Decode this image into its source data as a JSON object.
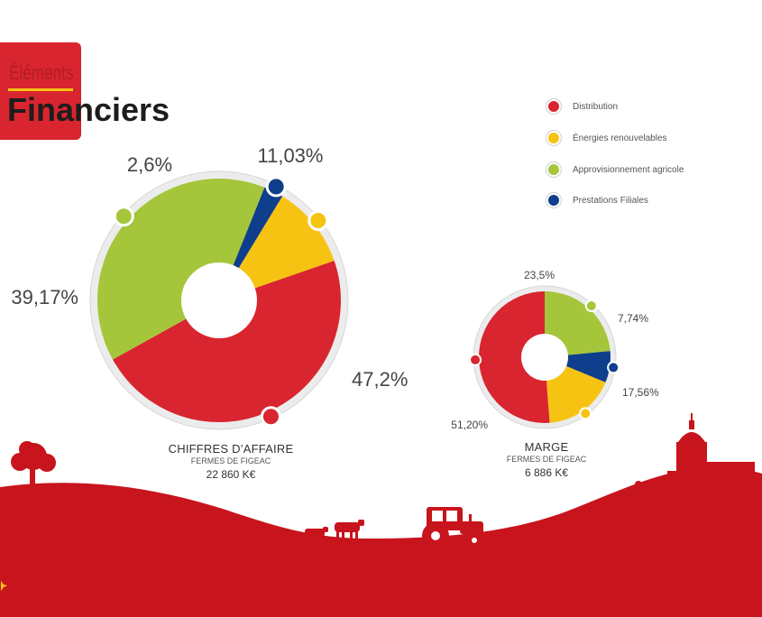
{
  "header": {
    "title_small": "Éléments",
    "title_big": "Financiers"
  },
  "legend": [
    {
      "label": "Distribution",
      "color": "#d9252f"
    },
    {
      "label": "Énergies renouvelables",
      "color": "#f7c313"
    },
    {
      "label": "Approvisionnement agricole",
      "color": "#a5c63b"
    },
    {
      "label": "Prestations Filiales",
      "color": "#0e3e8c"
    }
  ],
  "chart_data": [
    {
      "type": "pie",
      "title": "CHIFFRES D’AFFAIRE",
      "subtitle": "FERMES DE FIGEAC",
      "total": "22 860 K€",
      "slices": [
        {
          "name": "Distribution",
          "value": 47.2,
          "label": "47,2%",
          "color": "#d9252f"
        },
        {
          "name": "Approvisionnement agricole",
          "value": 39.17,
          "label": "39,17%",
          "color": "#a5c63b"
        },
        {
          "name": "Prestations Filiales",
          "value": 2.6,
          "label": "2,6%",
          "color": "#0e3e8c"
        },
        {
          "name": "Énergies renouvelables",
          "value": 11.03,
          "label": "11,03%",
          "color": "#f7c313"
        }
      ]
    },
    {
      "type": "pie",
      "title": "MARGE",
      "subtitle": "FERMES DE FIGEAC",
      "total": "6 886 K€",
      "slices": [
        {
          "name": "Approvisionnement agricole",
          "value": 23.5,
          "label": "23,5%",
          "color": "#a5c63b"
        },
        {
          "name": "Prestations Filiales",
          "value": 7.74,
          "label": "7,74%",
          "color": "#0e3e8c"
        },
        {
          "name": "Énergies renouvelables",
          "value": 17.56,
          "label": "17,56%",
          "color": "#f7c313"
        },
        {
          "name": "Distribution",
          "value": 51.2,
          "label": "51,20%",
          "color": "#d9252f"
        }
      ]
    }
  ]
}
